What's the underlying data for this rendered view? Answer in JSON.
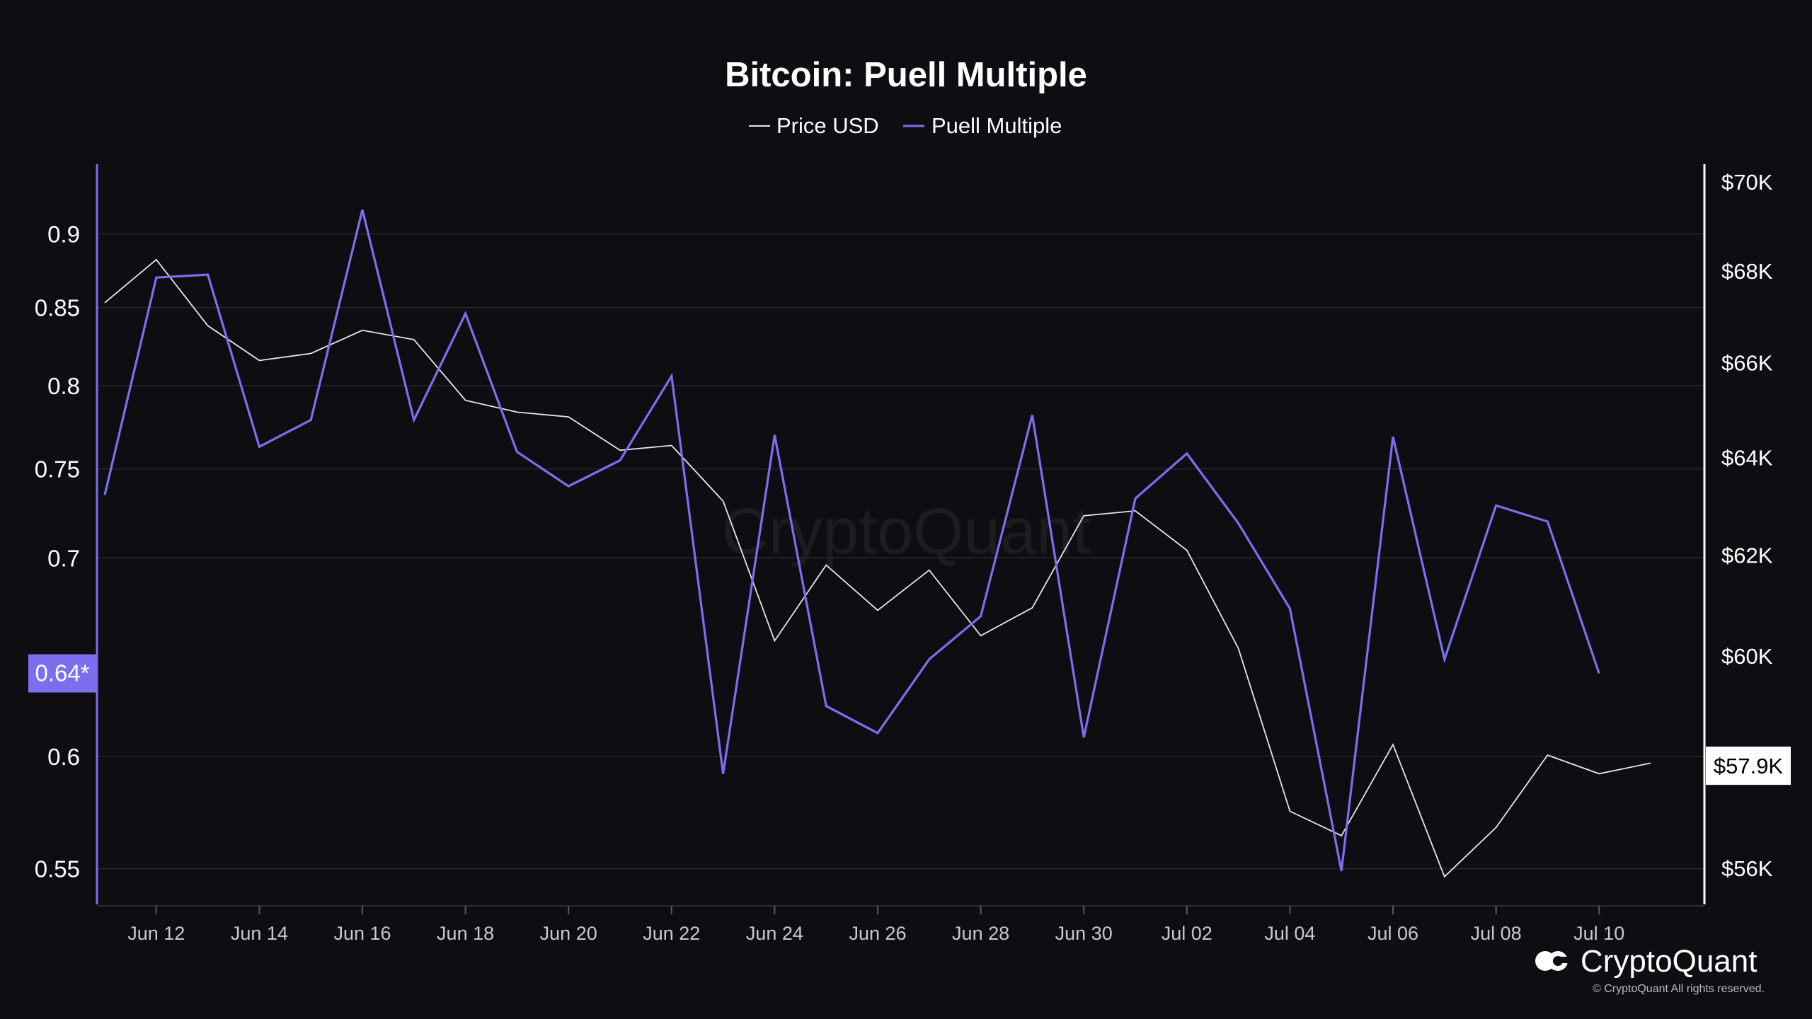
{
  "colors": {
    "background": "#0e0e12",
    "grid": "#25252c",
    "price_line": "#e6e6ea",
    "puell_line": "#7b6ff0",
    "left_axis": "#7b6ff0",
    "right_axis": "#ffffff"
  },
  "brand": {
    "name": "CryptoQuant",
    "copyright": "© CryptoQuant All rights reserved.",
    "watermark": "CryptoQuant",
    "logo_icon": "cryptoquant-logo-icon"
  },
  "chart_data": {
    "type": "line",
    "title": "Bitcoin: Puell Multiple",
    "legend_position": "top-center",
    "grid": true,
    "x_range": [
      "2024-06-11",
      "2024-07-11"
    ],
    "x_ticks": [
      {
        "date": "2024-06-12",
        "label": "Jun 12"
      },
      {
        "date": "2024-06-14",
        "label": "Jun 14"
      },
      {
        "date": "2024-06-16",
        "label": "Jun 16"
      },
      {
        "date": "2024-06-18",
        "label": "Jun 18"
      },
      {
        "date": "2024-06-20",
        "label": "Jun 20"
      },
      {
        "date": "2024-06-22",
        "label": "Jun 22"
      },
      {
        "date": "2024-06-24",
        "label": "Jun 24"
      },
      {
        "date": "2024-06-26",
        "label": "Jun 26"
      },
      {
        "date": "2024-06-28",
        "label": "Jun 28"
      },
      {
        "date": "2024-06-30",
        "label": "Jun 30"
      },
      {
        "date": "2024-07-02",
        "label": "Jul 02"
      },
      {
        "date": "2024-07-04",
        "label": "Jul 04"
      },
      {
        "date": "2024-07-06",
        "label": "Jul 06"
      },
      {
        "date": "2024-07-08",
        "label": "Jul 08"
      },
      {
        "date": "2024-07-10",
        "label": "Jul 10"
      }
    ],
    "left_axis": {
      "scale": "log",
      "range": [
        0.535,
        0.95
      ],
      "ticks": [
        {
          "value": 0.9,
          "label": "0.9"
        },
        {
          "value": 0.85,
          "label": "0.85"
        },
        {
          "value": 0.8,
          "label": "0.8"
        },
        {
          "value": 0.75,
          "label": "0.75"
        },
        {
          "value": 0.7,
          "label": "0.7"
        },
        {
          "value": 0.6,
          "label": "0.6"
        },
        {
          "value": 0.55,
          "label": "0.55"
        }
      ],
      "current": {
        "value": 0.64,
        "label": "0.64*"
      }
    },
    "right_axis": {
      "scale": "log",
      "range": [
        55350,
        70400
      ],
      "ticks": [
        {
          "value": 70000,
          "label": "$70K"
        },
        {
          "value": 68000,
          "label": "$68K"
        },
        {
          "value": 66000,
          "label": "$66K"
        },
        {
          "value": 64000,
          "label": "$64K"
        },
        {
          "value": 62000,
          "label": "$62K"
        },
        {
          "value": 60000,
          "label": "$60K"
        },
        {
          "value": 56000,
          "label": "$56K"
        }
      ],
      "current": {
        "value": 57900,
        "label": "$57.9K"
      }
    },
    "series": [
      {
        "name": "Price USD",
        "axis": "right",
        "color": "#e6e6ea",
        "points": [
          [
            "2024-06-11",
            67300
          ],
          [
            "2024-06-12",
            68250
          ],
          [
            "2024-06-13",
            66800
          ],
          [
            "2024-06-14",
            66050
          ],
          [
            "2024-06-15",
            66200
          ],
          [
            "2024-06-16",
            66700
          ],
          [
            "2024-06-17",
            66500
          ],
          [
            "2024-06-18",
            65200
          ],
          [
            "2024-06-19",
            64950
          ],
          [
            "2024-06-20",
            64850
          ],
          [
            "2024-06-21",
            64150
          ],
          [
            "2024-06-22",
            64250
          ],
          [
            "2024-06-23",
            63100
          ],
          [
            "2024-06-24",
            60300
          ],
          [
            "2024-06-25",
            61800
          ],
          [
            "2024-06-26",
            60900
          ],
          [
            "2024-06-27",
            61700
          ],
          [
            "2024-06-28",
            60400
          ],
          [
            "2024-06-29",
            60950
          ],
          [
            "2024-06-30",
            62800
          ],
          [
            "2024-07-01",
            62900
          ],
          [
            "2024-07-02",
            62100
          ],
          [
            "2024-07-03",
            60150
          ],
          [
            "2024-07-04",
            57050
          ],
          [
            "2024-07-05",
            56600
          ],
          [
            "2024-07-06",
            58300
          ],
          [
            "2024-07-07",
            55850
          ],
          [
            "2024-07-08",
            56750
          ],
          [
            "2024-07-09",
            58100
          ],
          [
            "2024-07-10",
            57750
          ],
          [
            "2024-07-11",
            57950
          ]
        ]
      },
      {
        "name": "Puell Multiple",
        "axis": "left",
        "color": "#7b6ff0",
        "points": [
          [
            "2024-06-11",
            0.735
          ],
          [
            "2024-06-12",
            0.87
          ],
          [
            "2024-06-13",
            0.872
          ],
          [
            "2024-06-14",
            0.763
          ],
          [
            "2024-06-15",
            0.779
          ],
          [
            "2024-06-16",
            0.917
          ],
          [
            "2024-06-17",
            0.779
          ],
          [
            "2024-06-18",
            0.846
          ],
          [
            "2024-06-19",
            0.76
          ],
          [
            "2024-06-20",
            0.74
          ],
          [
            "2024-06-21",
            0.755
          ],
          [
            "2024-06-22",
            0.806
          ],
          [
            "2024-06-23",
            0.592
          ],
          [
            "2024-06-24",
            0.77
          ],
          [
            "2024-06-25",
            0.624
          ],
          [
            "2024-06-26",
            0.611
          ],
          [
            "2024-06-27",
            0.647
          ],
          [
            "2024-06-28",
            0.669
          ],
          [
            "2024-06-29",
            0.782
          ],
          [
            "2024-06-30",
            0.609
          ],
          [
            "2024-07-01",
            0.733
          ],
          [
            "2024-07-02",
            0.759
          ],
          [
            "2024-07-03",
            0.719
          ],
          [
            "2024-07-04",
            0.673
          ],
          [
            "2024-07-05",
            0.549
          ],
          [
            "2024-07-06",
            0.769
          ],
          [
            "2024-07-07",
            0.647
          ],
          [
            "2024-07-08",
            0.729
          ],
          [
            "2024-07-09",
            0.72
          ],
          [
            "2024-07-10",
            0.64
          ]
        ]
      }
    ]
  }
}
